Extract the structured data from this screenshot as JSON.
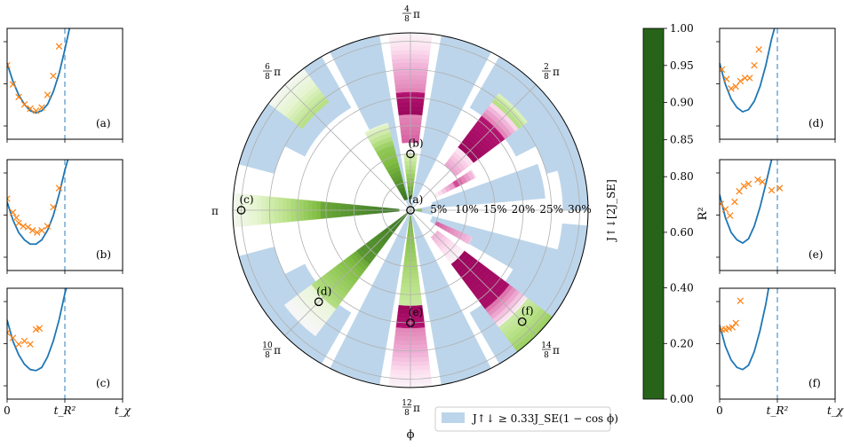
{
  "chart_data": {
    "polar": {
      "type": "polar-heatmap",
      "angle_labels": [
        {
          "deg": 90,
          "num": "4",
          "den": "8",
          "sym": "π"
        },
        {
          "deg": 45,
          "num": "2",
          "den": "8",
          "sym": "π"
        },
        {
          "deg": 135,
          "num": "6",
          "den": "8",
          "sym": "π"
        },
        {
          "deg": 180,
          "num": "",
          "den": "",
          "sym": "π"
        },
        {
          "deg": 225,
          "num": "10",
          "den": "8",
          "sym": "π"
        },
        {
          "deg": 270,
          "num": "12",
          "den": "8",
          "sym": "π"
        },
        {
          "deg": 315,
          "num": "14",
          "den": "8",
          "sym": "π"
        }
      ],
      "radial_ticks": [
        "5%",
        "10%",
        "15%",
        "20%",
        "25%",
        "30%"
      ],
      "radial_values": [
        5,
        10,
        15,
        20,
        25,
        30
      ],
      "rmax": 31.5,
      "radial_label": "J↑↓[2J_SE]",
      "angle_axis_label": "ϕ",
      "legend_label": "J↑↓ ≥ 0.33J_SE(1 − cos ϕ)",
      "wedges": [
        {
          "deg": 0,
          "inner_green": 0,
          "outer_green": 1.5,
          "r2": 0.88
        },
        {
          "deg": 22.5,
          "cells": "mixed"
        },
        {
          "deg": 45,
          "profile": "magenta",
          "r_start": 10,
          "r_end": 24
        },
        {
          "deg": 67.5,
          "profile": "green",
          "r_start": 0,
          "r_end": 8
        },
        {
          "deg": 90,
          "profile": "mixed",
          "r_start": 2,
          "r_end": 31
        },
        {
          "deg": 112.5,
          "profile": "green",
          "r_start": 0,
          "r_end": 16
        },
        {
          "deg": 135,
          "profile": "light",
          "r_start": 20,
          "r_end": 31
        },
        {
          "deg": 180,
          "profile": "green",
          "r_start": 15,
          "r_end": 31
        },
        {
          "deg": 225,
          "profile": "green",
          "r_start": 0,
          "r_end": 22
        },
        {
          "deg": 270,
          "profile": "mixed",
          "r_start": 0,
          "r_end": 31
        },
        {
          "deg": 315,
          "profile": "magenta",
          "r_start": 5,
          "r_end": 31
        }
      ],
      "points": [
        {
          "label": "(a)",
          "deg": 0,
          "r": 0
        },
        {
          "label": "(b)",
          "deg": 90,
          "r": 10
        },
        {
          "label": "(c)",
          "deg": 180,
          "r": 30
        },
        {
          "label": "(d)",
          "deg": 225,
          "r": 23
        },
        {
          "label": "(e)",
          "deg": 270,
          "r": 20
        },
        {
          "label": "(f)",
          "deg": 315,
          "r": 28
        }
      ]
    },
    "colorbar": {
      "label": "R²",
      "ticks": [
        "1.00",
        "0.95",
        "0.90",
        "0.85",
        "0.80",
        "0.60",
        "0.40",
        "0.20",
        "0.00"
      ],
      "tick_values": [
        1.0,
        0.95,
        0.9,
        0.85,
        0.8,
        0.6,
        0.4,
        0.2,
        0.0
      ]
    },
    "panels": {
      "x_ticks": [
        "0",
        "t_R²",
        "t_χ"
      ],
      "items": [
        {
          "label": "(a)",
          "side": "left",
          "row": 0,
          "t_r2": 0.5,
          "curve_x": [
            0,
            0.05,
            0.1,
            0.15,
            0.2,
            0.25,
            0.3,
            0.35,
            0.4,
            0.45,
            0.5,
            0.54
          ],
          "curve_y": [
            0.72,
            0.55,
            0.42,
            0.33,
            0.27,
            0.25,
            0.27,
            0.33,
            0.45,
            0.62,
            0.85,
            1.05
          ],
          "cross_x": [
            0.0,
            0.05,
            0.1,
            0.15,
            0.2,
            0.25,
            0.3,
            0.35,
            0.4,
            0.45
          ],
          "cross_y": [
            0.7,
            0.52,
            0.4,
            0.33,
            0.29,
            0.27,
            0.3,
            0.42,
            0.6,
            0.88
          ]
        },
        {
          "label": "(b)",
          "side": "left",
          "row": 1,
          "t_r2": 0.5,
          "curve_x": [
            0,
            0.05,
            0.1,
            0.15,
            0.2,
            0.25,
            0.3,
            0.35,
            0.4,
            0.45,
            0.5,
            0.54
          ],
          "curve_y": [
            0.65,
            0.48,
            0.36,
            0.29,
            0.25,
            0.25,
            0.29,
            0.38,
            0.52,
            0.72,
            0.95,
            1.1
          ],
          "cross_x": [
            0.0,
            0.05,
            0.08,
            0.1,
            0.14,
            0.18,
            0.22,
            0.26,
            0.3,
            0.35,
            0.4,
            0.45
          ],
          "cross_y": [
            0.68,
            0.55,
            0.5,
            0.45,
            0.42,
            0.41,
            0.38,
            0.36,
            0.38,
            0.42,
            0.6,
            0.78
          ]
        },
        {
          "label": "(c)",
          "side": "left",
          "row": 2,
          "t_r2": 0.5,
          "curve_x": [
            0,
            0.05,
            0.1,
            0.15,
            0.2,
            0.25,
            0.3,
            0.35,
            0.4,
            0.45,
            0.5,
            0.54
          ],
          "curve_y": [
            0.75,
            0.55,
            0.42,
            0.33,
            0.28,
            0.27,
            0.3,
            0.4,
            0.55,
            0.75,
            1.0,
            1.15
          ],
          "cross_x": [
            0.0,
            0.05,
            0.1,
            0.15,
            0.2,
            0.25,
            0.28
          ],
          "cross_y": [
            0.63,
            0.58,
            0.52,
            0.55,
            0.52,
            0.66,
            0.67
          ]
        },
        {
          "label": "(d)",
          "side": "right",
          "row": 0,
          "t_r2": 0.5,
          "curve_x": [
            0,
            0.05,
            0.1,
            0.15,
            0.2,
            0.25,
            0.3,
            0.35,
            0.4,
            0.45,
            0.5
          ],
          "curve_y": [
            0.72,
            0.52,
            0.38,
            0.3,
            0.26,
            0.28,
            0.36,
            0.5,
            0.7,
            0.95,
            1.15
          ],
          "cross_x": [
            0.02,
            0.06,
            0.1,
            0.14,
            0.18,
            0.22,
            0.26,
            0.3,
            0.34
          ],
          "cross_y": [
            0.66,
            0.57,
            0.48,
            0.5,
            0.55,
            0.58,
            0.58,
            0.7,
            0.85
          ]
        },
        {
          "label": "(e)",
          "side": "right",
          "row": 1,
          "t_r2": 0.5,
          "curve_x": [
            0,
            0.05,
            0.1,
            0.15,
            0.2,
            0.25,
            0.3,
            0.35,
            0.4,
            0.45,
            0.48
          ],
          "curve_y": [
            0.72,
            0.5,
            0.36,
            0.29,
            0.26,
            0.3,
            0.42,
            0.6,
            0.82,
            1.05,
            1.15
          ],
          "cross_x": [
            0.01,
            0.05,
            0.09,
            0.13,
            0.17,
            0.21,
            0.25,
            0.33,
            0.37,
            0.45,
            0.52
          ],
          "cross_y": [
            0.63,
            0.58,
            0.52,
            0.65,
            0.75,
            0.8,
            0.82,
            0.86,
            0.84,
            0.76,
            0.78
          ]
        },
        {
          "label": "(f)",
          "side": "right",
          "row": 2,
          "t_r2": 0.5,
          "curve_x": [
            0,
            0.05,
            0.1,
            0.15,
            0.2,
            0.25,
            0.3,
            0.35,
            0.4,
            0.44
          ],
          "curve_y": [
            0.7,
            0.5,
            0.37,
            0.3,
            0.28,
            0.32,
            0.45,
            0.65,
            0.9,
            1.15
          ],
          "cross_x": [
            0.02,
            0.05,
            0.08,
            0.11,
            0.14,
            0.18
          ],
          "cross_y": [
            0.66,
            0.66,
            0.67,
            0.68,
            0.72,
            0.93
          ]
        }
      ]
    }
  }
}
